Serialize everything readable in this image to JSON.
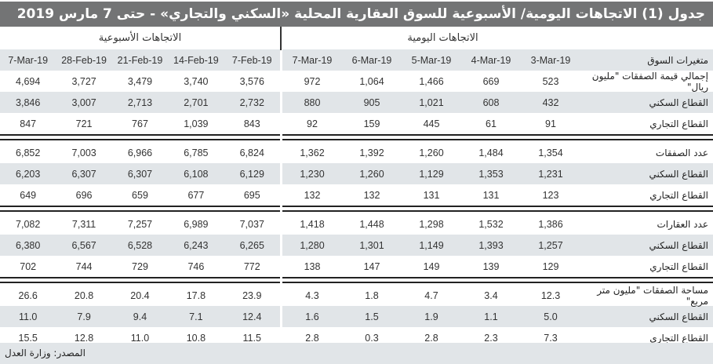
{
  "title": "جدول (1) الاتجاهات اليومية/ الأسبوعية للسوق العقارية المحلية «السكني والتجاري» - حتى 7 مارس 2019",
  "headers": {
    "weekly": "الاتجاهات الأسبوعية",
    "daily": "الاتجاهات اليومية",
    "row_label": "متغيرات السوق"
  },
  "weekly_dates": [
    "7-Mar-19",
    "28-Feb-19",
    "21-Feb-19",
    "14-Feb-19",
    "7-Feb-19"
  ],
  "daily_dates": [
    "7-Mar-19",
    "6-Mar-19",
    "5-Mar-19",
    "4-Mar-19",
    "3-Mar-19"
  ],
  "groups": [
    {
      "rows": [
        {
          "label": "إجمالي قيمة الصفقات \"مليون ريال\"",
          "weekly": [
            "4,694",
            "3,727",
            "3,479",
            "3,740",
            "3,576"
          ],
          "daily": [
            "972",
            "1,064",
            "1,466",
            "669",
            "523"
          ]
        },
        {
          "label": "القطاع السكني",
          "weekly": [
            "3,846",
            "3,007",
            "2,713",
            "2,701",
            "2,732"
          ],
          "daily": [
            "880",
            "905",
            "1,021",
            "608",
            "432"
          ]
        },
        {
          "label": "القطاع التجاري",
          "weekly": [
            "847",
            "721",
            "767",
            "1,039",
            "843"
          ],
          "daily": [
            "92",
            "159",
            "445",
            "61",
            "91"
          ]
        }
      ]
    },
    {
      "rows": [
        {
          "label": "عدد الصفقات",
          "weekly": [
            "6,852",
            "7,003",
            "6,966",
            "6,785",
            "6,824"
          ],
          "daily": [
            "1,362",
            "1,392",
            "1,260",
            "1,484",
            "1,354"
          ]
        },
        {
          "label": "القطاع السكني",
          "weekly": [
            "6,203",
            "6,307",
            "6,307",
            "6,108",
            "6,129"
          ],
          "daily": [
            "1,230",
            "1,260",
            "1,129",
            "1,353",
            "1,231"
          ]
        },
        {
          "label": "القطاع التجاري",
          "weekly": [
            "649",
            "696",
            "659",
            "677",
            "695"
          ],
          "daily": [
            "132",
            "132",
            "131",
            "131",
            "123"
          ]
        }
      ]
    },
    {
      "rows": [
        {
          "label": "عدد العقارات",
          "weekly": [
            "7,082",
            "7,311",
            "7,257",
            "6,989",
            "7,037"
          ],
          "daily": [
            "1,418",
            "1,448",
            "1,298",
            "1,532",
            "1,386"
          ]
        },
        {
          "label": "القطاع السكني",
          "weekly": [
            "6,380",
            "6,567",
            "6,528",
            "6,243",
            "6,265"
          ],
          "daily": [
            "1,280",
            "1,301",
            "1,149",
            "1,393",
            "1,257"
          ]
        },
        {
          "label": "القطاع التجاري",
          "weekly": [
            "702",
            "744",
            "729",
            "746",
            "772"
          ],
          "daily": [
            "138",
            "147",
            "149",
            "139",
            "129"
          ]
        }
      ]
    },
    {
      "rows": [
        {
          "label": "مساحة الصفقات \"مليون متر مربع\"",
          "weekly": [
            "26.6",
            "20.8",
            "20.4",
            "17.8",
            "23.9"
          ],
          "daily": [
            "4.3",
            "1.8",
            "4.7",
            "3.4",
            "12.3"
          ]
        },
        {
          "label": "القطاع السكني",
          "weekly": [
            "11.0",
            "7.9",
            "9.4",
            "7.1",
            "12.4"
          ],
          "daily": [
            "1.6",
            "1.5",
            "1.9",
            "1.1",
            "5.0"
          ]
        },
        {
          "label": "القطاع التجاري",
          "weekly": [
            "15.5",
            "12.8",
            "11.0",
            "10.8",
            "11.5"
          ],
          "daily": [
            "2.8",
            "0.3",
            "2.8",
            "2.3",
            "7.3"
          ]
        }
      ]
    }
  ],
  "source": "المصدر: وزارة العدل",
  "colors": {
    "title_bg": "#737475",
    "stripe": "#e1e5e8",
    "text": "#333333"
  }
}
